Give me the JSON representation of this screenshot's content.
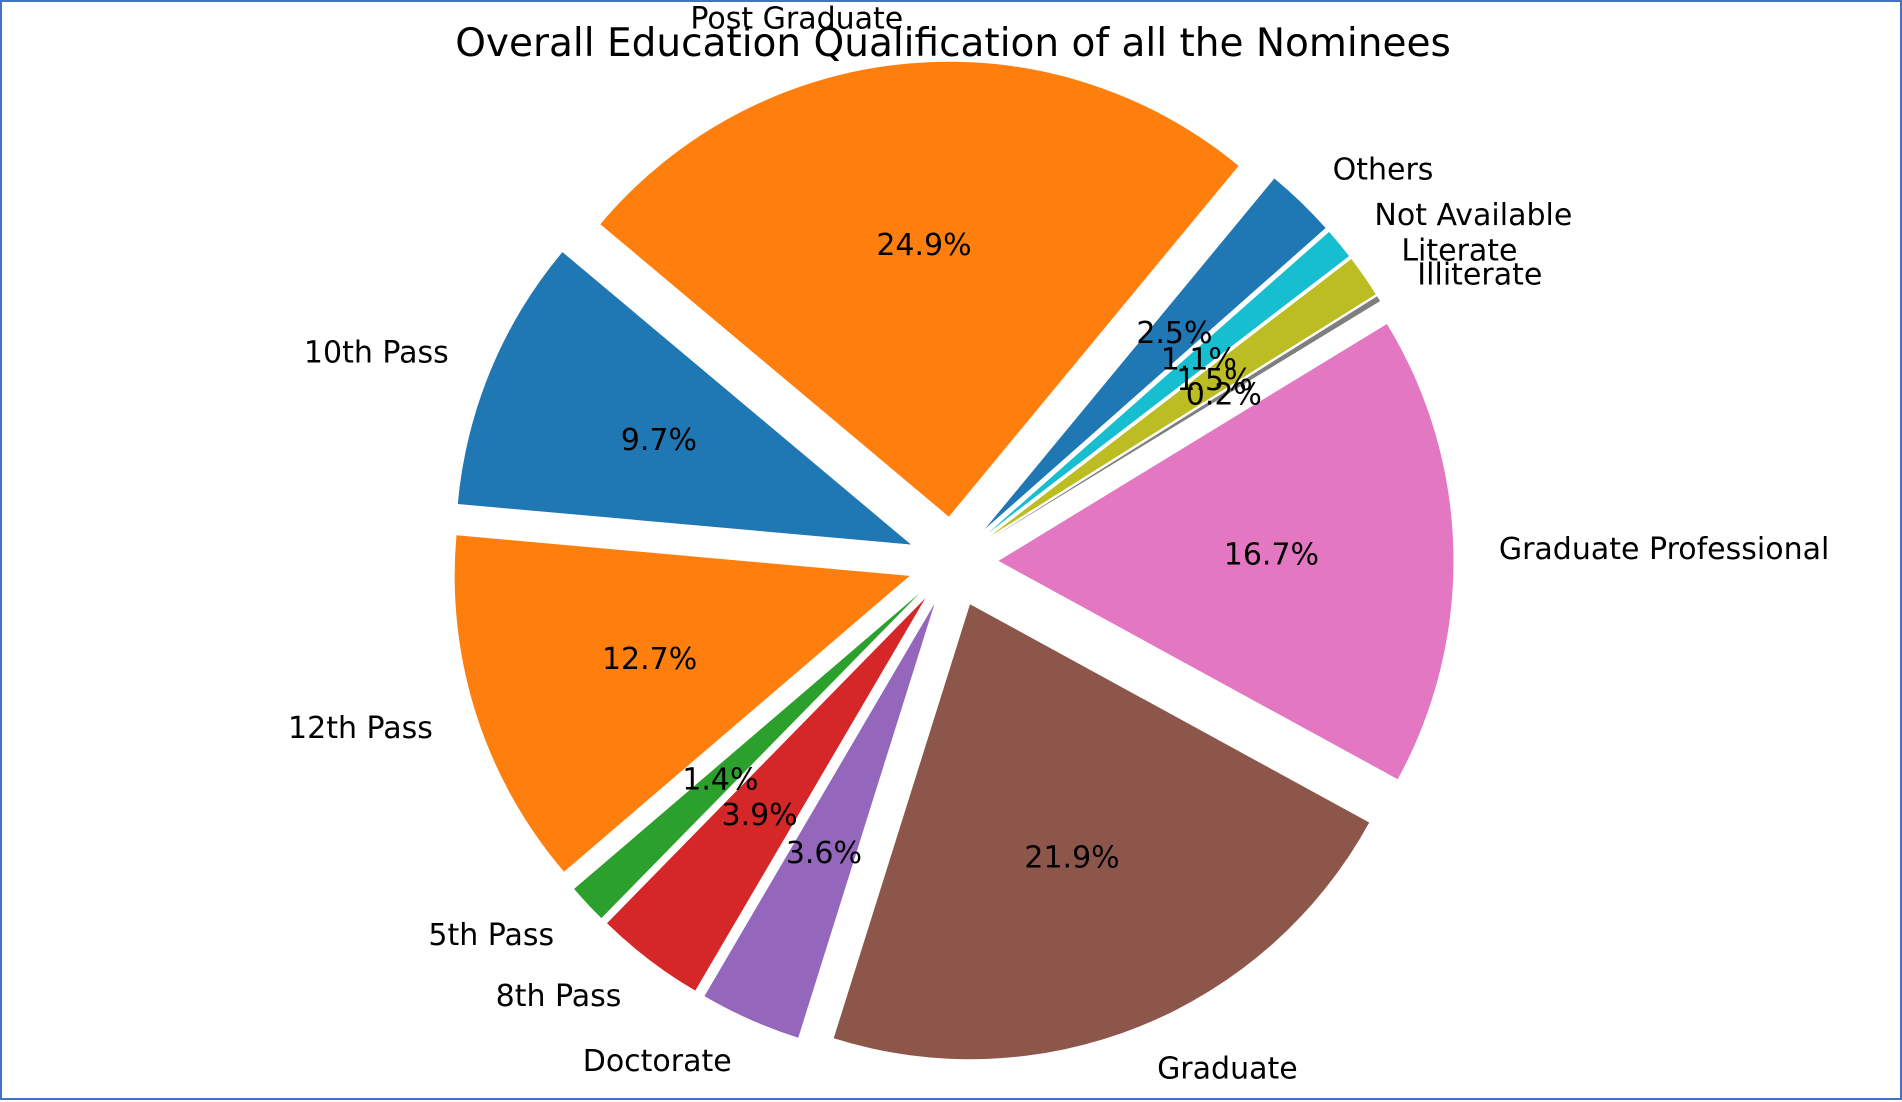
{
  "chart_data": {
    "type": "pie",
    "title": "Overall Education Qualification of all the Nominees",
    "slices": [
      {
        "label": "10th Pass",
        "value": 9.7,
        "pct_text": "9.7%",
        "color": "#1f77b4"
      },
      {
        "label": "12th Pass",
        "value": 12.7,
        "pct_text": "12.7%",
        "color": "#ff7f0e"
      },
      {
        "label": "5th Pass",
        "value": 1.4,
        "pct_text": "1.4%",
        "color": "#2ca02c"
      },
      {
        "label": "8th Pass",
        "value": 3.9,
        "pct_text": "3.9%",
        "color": "#d62728"
      },
      {
        "label": "Doctorate",
        "value": 3.6,
        "pct_text": "3.6%",
        "color": "#9467bd"
      },
      {
        "label": "Graduate",
        "value": 21.9,
        "pct_text": "21.9%",
        "color": "#8c564b"
      },
      {
        "label": "Graduate Professional",
        "value": 16.7,
        "pct_text": "16.7%",
        "color": "#e377c2"
      },
      {
        "label": "Illiterate",
        "value": 0.2,
        "pct_text": "0.2%",
        "color": "#7f7f7f"
      },
      {
        "label": "Literate",
        "value": 1.5,
        "pct_text": "1.5%",
        "color": "#bcbd22"
      },
      {
        "label": "Not Available",
        "value": 1.1,
        "pct_text": "1.1%",
        "color": "#17becf"
      },
      {
        "label": "Others",
        "value": 2.5,
        "pct_text": "2.5%",
        "color": "#1f77b4"
      },
      {
        "label": "Post Graduate",
        "value": 24.9,
        "pct_text": "24.9%",
        "color": "#ff7f0e"
      }
    ]
  }
}
